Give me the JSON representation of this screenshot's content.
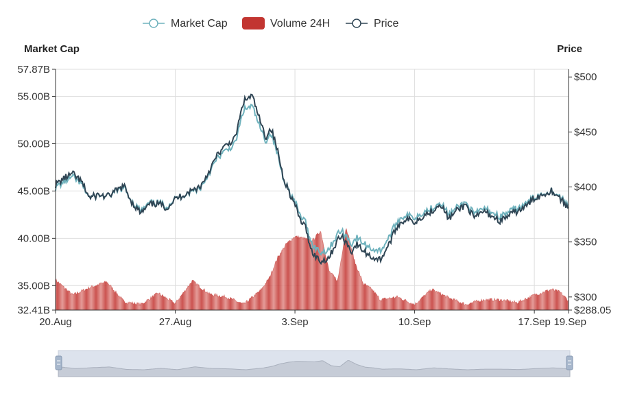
{
  "chart_data": {
    "type": "line",
    "legend": {
      "placement": "top-center",
      "items": [
        {
          "name": "Market Cap",
          "kind": "line",
          "color": "#6fb2bd"
        },
        {
          "name": "Volume 24H",
          "kind": "area",
          "color": "#c23531"
        },
        {
          "name": "Price",
          "kind": "line",
          "color": "#2f4554"
        }
      ]
    },
    "y_left": {
      "name": "Market Cap",
      "min": 32.41,
      "max": 57.87,
      "ticks": [
        {
          "v": 57.87,
          "label": "57.87B"
        },
        {
          "v": 55.0,
          "label": "55.00B"
        },
        {
          "v": 50.0,
          "label": "50.00B"
        },
        {
          "v": 45.0,
          "label": "45.00B"
        },
        {
          "v": 40.0,
          "label": "40.00B"
        },
        {
          "v": 35.0,
          "label": "35.00B"
        },
        {
          "v": 32.41,
          "label": "32.41B"
        }
      ]
    },
    "y_right": {
      "name": "Price",
      "min": 288.05,
      "max": 507,
      "ticks": [
        {
          "v": 500,
          "label": "$500"
        },
        {
          "v": 450,
          "label": "$450"
        },
        {
          "v": 400,
          "label": "$400"
        },
        {
          "v": 350,
          "label": "$350"
        },
        {
          "v": 300,
          "label": "$300"
        },
        {
          "v": 288.05,
          "label": "$288.05"
        }
      ]
    },
    "x_axis": {
      "min": 0,
      "max": 30,
      "unit": "days since 20 Aug",
      "ticks": [
        {
          "v": 0,
          "label": "20.Aug"
        },
        {
          "v": 7,
          "label": "27.Aug"
        },
        {
          "v": 14,
          "label": "3.Sep"
        },
        {
          "v": 21,
          "label": "10.Sep"
        },
        {
          "v": 28,
          "label": "17.Sep"
        },
        {
          "v": 30,
          "label": "19.Sep"
        }
      ]
    },
    "price_series": {
      "name": "Price",
      "x": [
        0,
        0.5,
        1,
        1.5,
        2,
        2.5,
        3,
        3.5,
        4,
        4.5,
        5,
        5.5,
        6,
        6.5,
        7,
        7.5,
        8,
        8.5,
        9,
        9.5,
        10,
        10.5,
        11,
        11.5,
        12,
        12.3,
        12.6,
        13,
        13.3,
        13.6,
        13.8,
        14,
        14.3,
        14.6,
        15,
        15.5,
        16,
        16.5,
        16.7,
        17,
        17.3,
        17.6,
        18,
        18.5,
        19,
        19.5,
        20,
        20.5,
        21,
        21.5,
        22,
        22.5,
        23,
        23.5,
        24,
        24.5,
        25,
        25.5,
        26,
        26.5,
        27,
        27.5,
        28,
        28.5,
        29,
        29.5,
        30
      ],
      "values": [
        402,
        408,
        412,
        405,
        390,
        393,
        391,
        396,
        401,
        385,
        376,
        384,
        385,
        381,
        389,
        393,
        397,
        401,
        415,
        430,
        438,
        444,
        478,
        483,
        458,
        445,
        454,
        432,
        410,
        398,
        390,
        384,
        370,
        364,
        341,
        332,
        336,
        352,
        355,
        350,
        341,
        348,
        342,
        336,
        334,
        348,
        365,
        371,
        368,
        374,
        378,
        385,
        371,
        379,
        384,
        371,
        378,
        374,
        369,
        374,
        378,
        382,
        390,
        393,
        397,
        390,
        380
      ]
    },
    "market_cap_series": {
      "name": "Market Cap",
      "values": [
        45.6,
        46.2,
        46.7,
        46.0,
        44.5,
        44.8,
        44.6,
        45.1,
        45.6,
        44.0,
        43.1,
        43.9,
        44.0,
        43.6,
        44.4,
        44.8,
        45.2,
        45.6,
        47.2,
        48.8,
        49.5,
        50.2,
        53.8,
        54.2,
        51.7,
        50.5,
        51.4,
        49.0,
        46.7,
        45.5,
        44.7,
        44.1,
        42.6,
        42.0,
        39.6,
        38.7,
        39.1,
        40.7,
        41.0,
        40.5,
        39.6,
        40.3,
        39.7,
        39.1,
        38.9,
        40.3,
        42.1,
        42.7,
        42.4,
        43.0,
        43.4,
        44.1,
        42.7,
        43.5,
        44.0,
        42.7,
        43.4,
        43.0,
        42.5,
        43.0,
        43.4,
        43.8,
        44.6,
        44.9,
        45.3,
        44.6,
        43.6
      ]
    },
    "volume_series": {
      "name": "Volume 24H",
      "x": [
        0,
        1,
        2,
        3,
        4,
        5,
        6,
        7,
        8,
        9,
        10,
        11,
        12,
        12.5,
        13,
        13.5,
        14,
        14.5,
        15,
        15.5,
        16,
        16.5,
        17,
        17.5,
        18,
        18.5,
        19,
        20,
        21,
        22,
        23,
        24,
        25,
        26,
        27,
        28,
        29,
        29.5,
        30
      ],
      "values": [
        35.6,
        34.0,
        34.8,
        35.4,
        33.3,
        33.0,
        34.2,
        33.1,
        35.5,
        34.1,
        33.8,
        33.0,
        34.5,
        35.8,
        38.0,
        39.4,
        40.2,
        40.0,
        39.7,
        40.8,
        36.5,
        35.5,
        41.2,
        37.5,
        35.2,
        34.6,
        33.5,
        33.8,
        33.0,
        34.6,
        33.7,
        33.0,
        33.5,
        33.5,
        33.2,
        34.0,
        34.6,
        34.3,
        33.4
      ]
    },
    "navigator": {
      "type": "area",
      "color": "#c6ccd7"
    }
  }
}
